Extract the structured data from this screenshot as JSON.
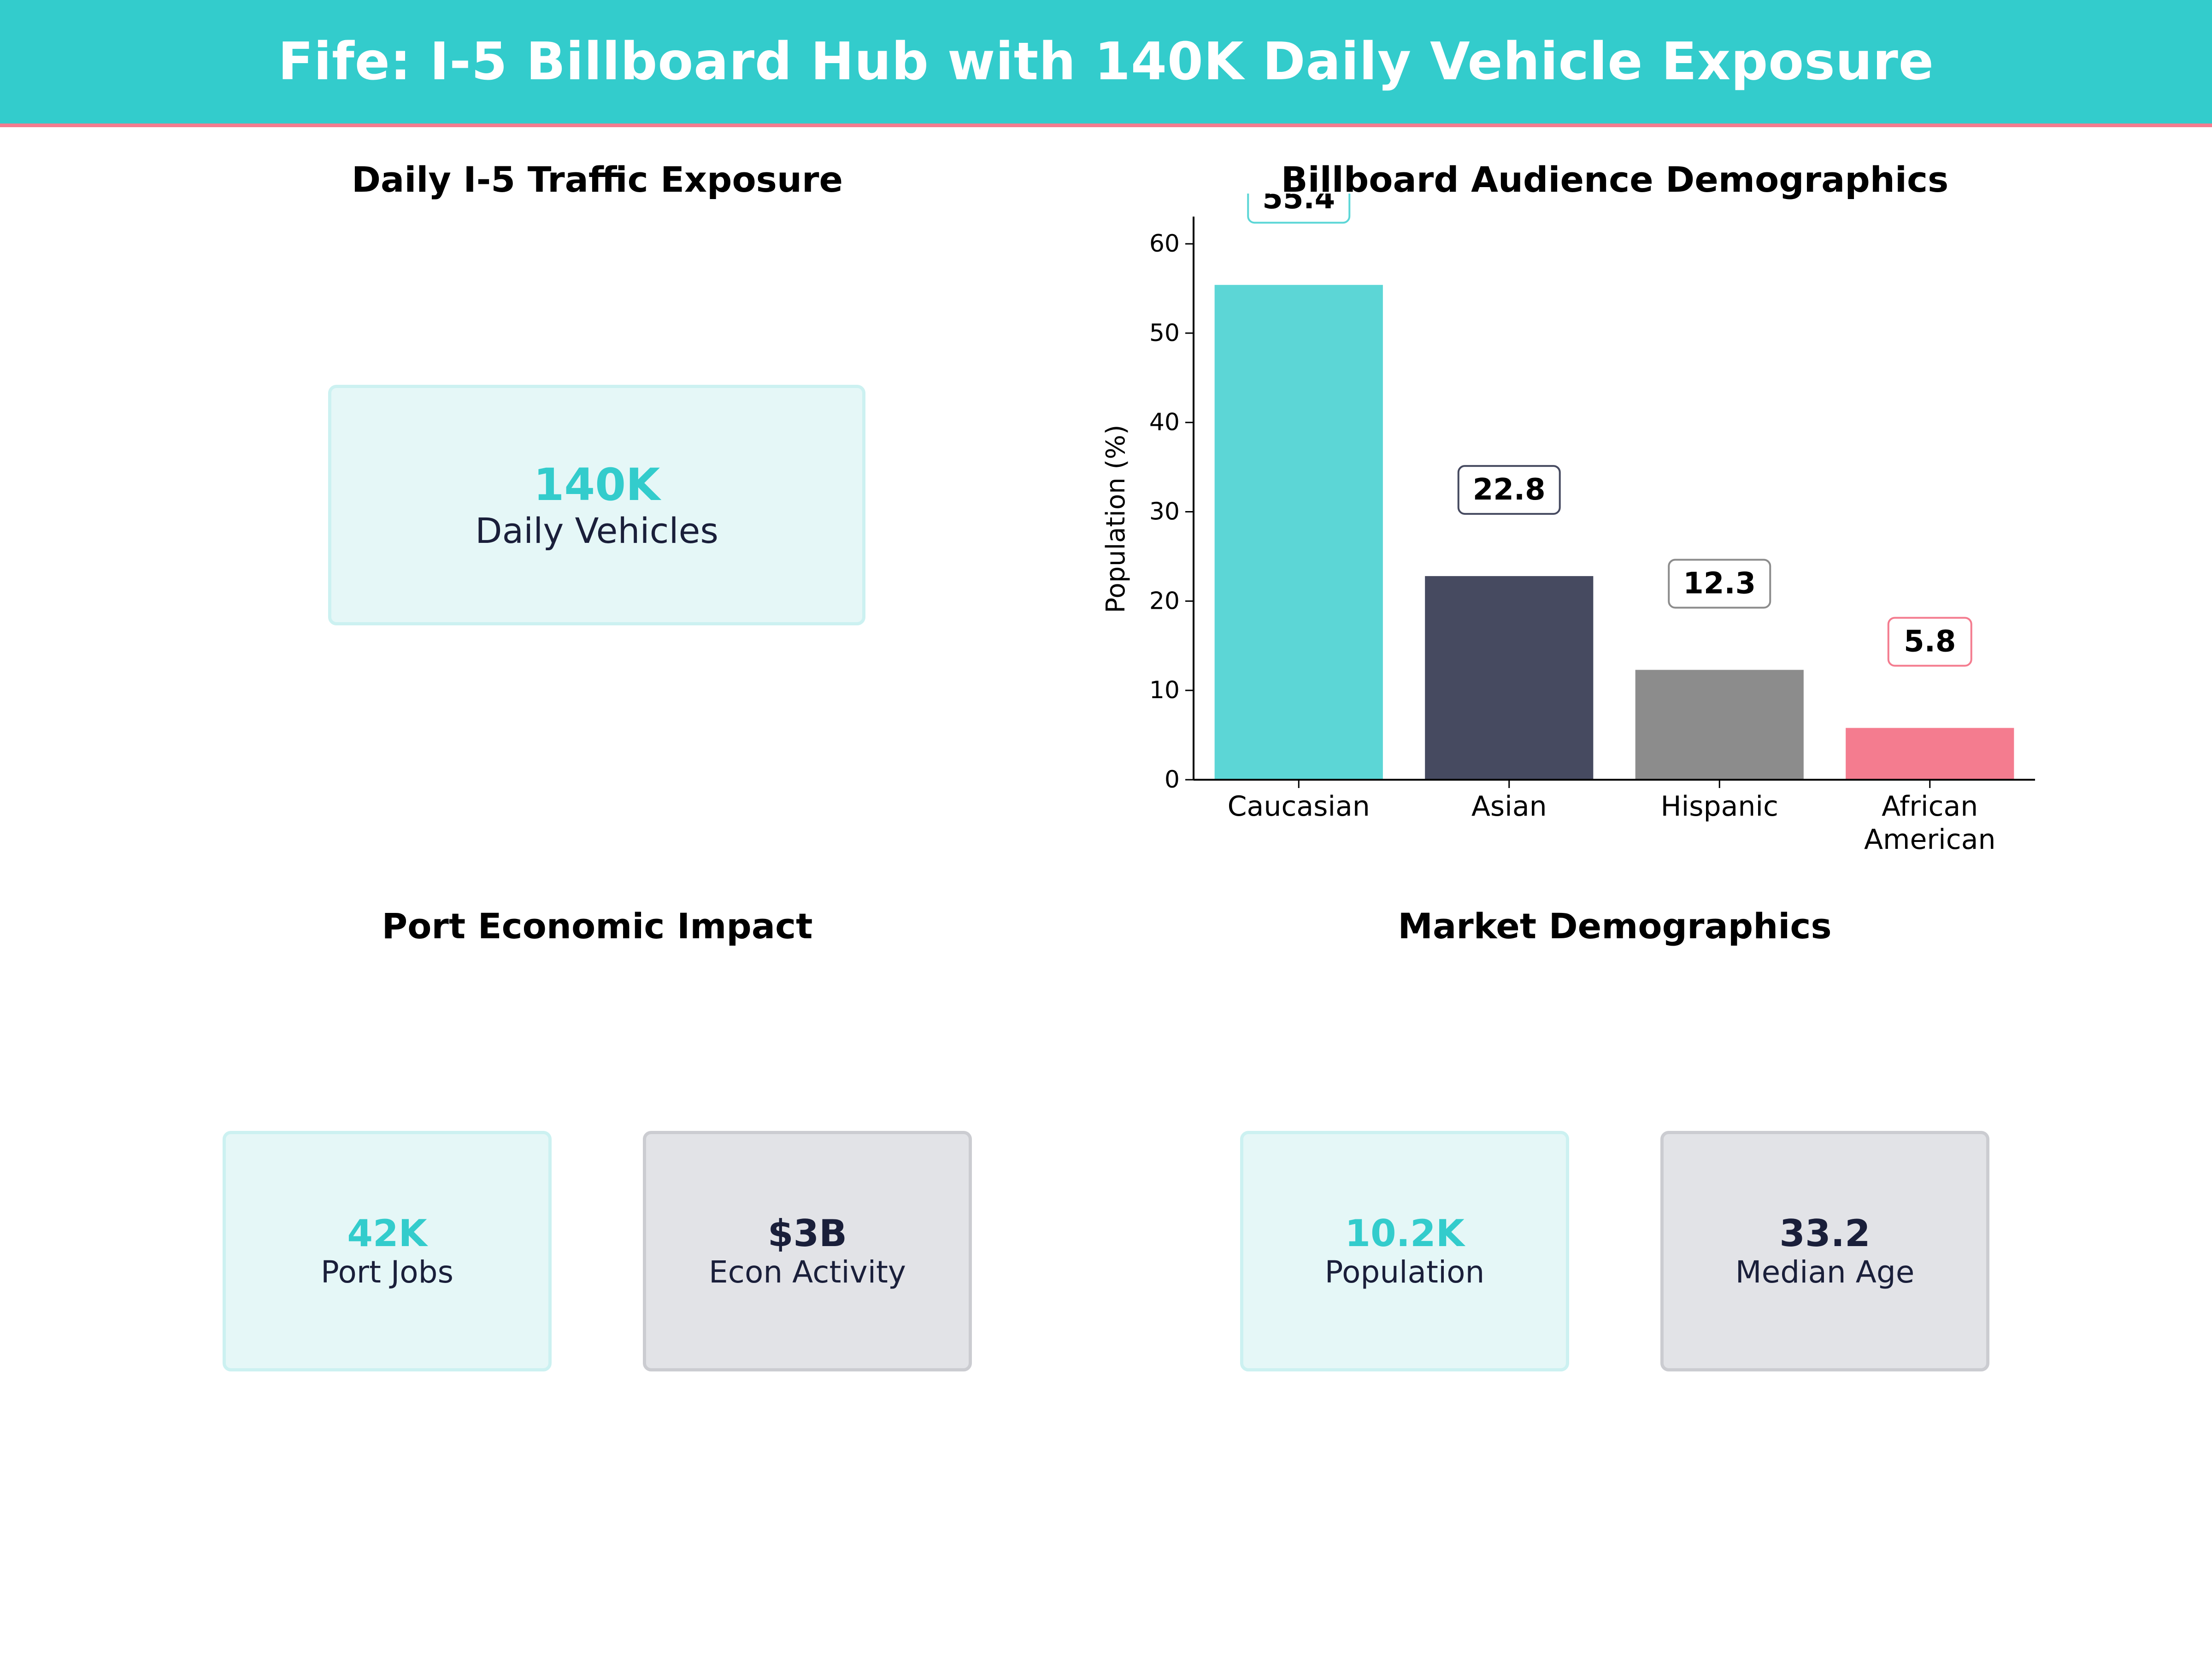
{
  "header": {
    "title": "Fife: I-5 Billboard Hub with 140K Daily Vehicle Exposure"
  },
  "traffic_panel": {
    "title": "Daily I-5 Traffic Exposure",
    "card": {
      "value": "140K",
      "label": "Daily Vehicles"
    }
  },
  "demographics_panel": {
    "title": "Billboard Audience Demographics"
  },
  "port_panel": {
    "title": "Port Economic Impact",
    "cards": [
      {
        "value": "42K",
        "label": "Port Jobs"
      },
      {
        "value": "$3B",
        "label": "Econ Activity"
      }
    ]
  },
  "market_panel": {
    "title": "Market Demographics",
    "cards": [
      {
        "value": "10.2K",
        "label": "Population"
      },
      {
        "value": "33.2",
        "label": "Median Age"
      }
    ]
  },
  "colors": {
    "banner": "#33cccc",
    "banner_accent": "#f47c8f",
    "teal_text": "#33cccc",
    "navy_text": "#1a1f3a"
  },
  "chart_data": {
    "type": "bar",
    "title": "Billboard Audience Demographics",
    "categories": [
      "Caucasian",
      "Asian",
      "Hispanic",
      "African American"
    ],
    "category_lines": [
      [
        "Caucasian"
      ],
      [
        "Asian"
      ],
      [
        "Hispanic"
      ],
      [
        "African",
        "American"
      ]
    ],
    "values": [
      55.4,
      22.8,
      12.3,
      5.8
    ],
    "value_labels": [
      "55.4",
      "22.8",
      "12.3",
      "5.8"
    ],
    "colors": [
      "#5cd6d6",
      "#464a60",
      "#8c8c8c",
      "#f47c8f"
    ],
    "label_border_colors": [
      "#5cd6d6",
      "#464a60",
      "#8c8c8c",
      "#f47c8f"
    ],
    "xlabel": "",
    "ylabel": "Population (%)",
    "ylim": [
      0,
      61.5
    ],
    "yticks": [
      0,
      10,
      20,
      30,
      40,
      50,
      60
    ],
    "grid": false
  }
}
